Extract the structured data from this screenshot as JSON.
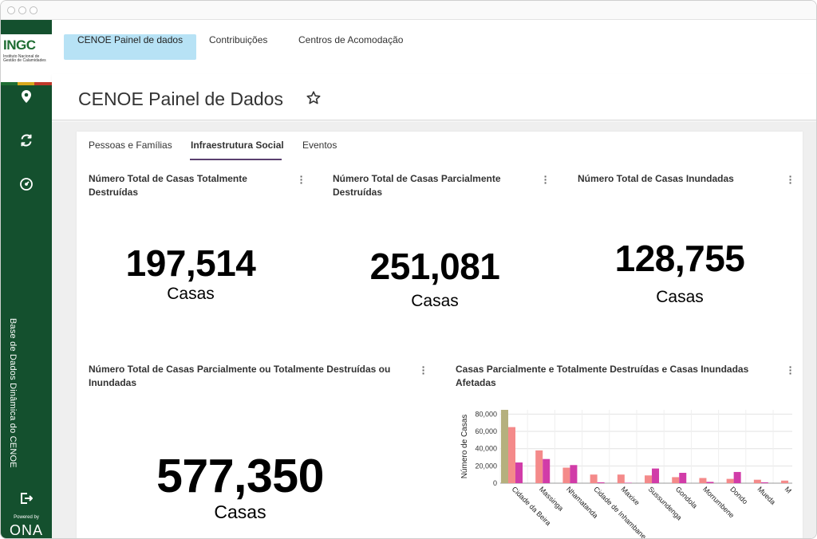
{
  "sidebar": {
    "logo_text": "INGC",
    "logo_subtitle": "Instituto Nacional de Gestão de Calamidades",
    "vertical_label": "Base de Dados Dinâmica do CENOE",
    "powered_by": "Powered by",
    "powered_brand": "ONA",
    "icons": [
      "map-pin-icon",
      "refresh-icon",
      "gauge-icon",
      "logout-icon"
    ]
  },
  "topnav": {
    "tabs": [
      {
        "label": "CENOE Painel de dados",
        "active": true
      },
      {
        "label": "Contribuições",
        "active": false
      },
      {
        "label": "Centros de Acomodação",
        "active": false
      }
    ]
  },
  "page": {
    "title": "CENOE Painel de Dados"
  },
  "subtabs": [
    {
      "label": "Pessoas e Famílias",
      "active": false
    },
    {
      "label": "Infraestrutura Social",
      "active": true
    },
    {
      "label": "Eventos",
      "active": false
    }
  ],
  "cards": [
    {
      "title": "Número Total de Casas Totalmente Destruídas",
      "value": "197,514",
      "unit": "Casas"
    },
    {
      "title": "Número Total de Casas Parcialmente Destruídas",
      "value": "251,081",
      "unit": "Casas"
    },
    {
      "title": "Número Total de Casas Inundadas",
      "value": "128,755",
      "unit": "Casas"
    },
    {
      "title": "Número Total de Casas Parcialmente ou Totalmente Destruídas ou Inundadas",
      "value": "577,350",
      "unit": "Casas"
    }
  ],
  "chart_card": {
    "title": "Casas Parcialmente e Totalmente Destruídas e Casas Inundadas Afetadas"
  },
  "chart_data": {
    "type": "bar",
    "ylabel": "Número de Casas",
    "ylim": [
      0,
      85000
    ],
    "yticks": [
      0,
      20000,
      40000,
      60000,
      80000
    ],
    "ytick_labels": [
      "0",
      "20,000",
      "40,000",
      "60,000",
      "80,000"
    ],
    "grid": true,
    "categories": [
      "Cidade da Beira",
      "Massinga",
      "Nhamatanda",
      "Cidade de Inhambane",
      "Maxixe",
      "Sussundenga",
      "Gondola",
      "Morrumbene",
      "Dondo",
      "Mueda",
      "M"
    ],
    "series": [
      {
        "color": "#b5b07e",
        "values": [
          85000,
          0,
          0,
          0,
          0,
          0,
          0,
          0,
          0,
          0,
          0
        ]
      },
      {
        "color": "#f48a8a",
        "values": [
          65000,
          38000,
          18000,
          10000,
          10000,
          9000,
          7000,
          6000,
          5000,
          4000,
          3000
        ]
      },
      {
        "color": "#d13ca8",
        "values": [
          24000,
          28000,
          21000,
          1000,
          500,
          17000,
          12000,
          1500,
          13000,
          1000,
          500
        ]
      }
    ]
  }
}
